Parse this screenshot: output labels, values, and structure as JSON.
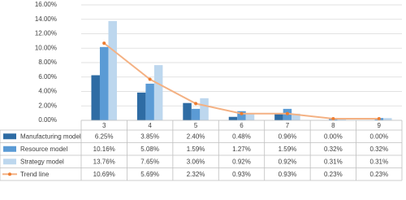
{
  "chart_data": {
    "type": "bar",
    "categories": [
      "3",
      "4",
      "5",
      "6",
      "7",
      "8",
      "9"
    ],
    "ylim": [
      0,
      16
    ],
    "yticks": [
      {
        "value": 0,
        "label": "0.00%"
      },
      {
        "value": 2,
        "label": "2.00%"
      },
      {
        "value": 4,
        "label": "4.00%"
      },
      {
        "value": 6,
        "label": "6.00%"
      },
      {
        "value": 8,
        "label": "8.00%"
      },
      {
        "value": 10,
        "label": "10.00%"
      },
      {
        "value": 12,
        "label": "12.00%"
      },
      {
        "value": 14,
        "label": "14.00%"
      },
      {
        "value": 16,
        "label": "16.00%"
      }
    ],
    "grid": true,
    "series": [
      {
        "name": "Manufacturing model",
        "type": "bar",
        "color": "#2e6ca4",
        "values": [
          6.25,
          3.85,
          2.4,
          0.48,
          0.96,
          0.0,
          0.0
        ],
        "value_labels": [
          "6.25%",
          "3.85%",
          "2.40%",
          "0.48%",
          "0.96%",
          "0.00%",
          "0.00%"
        ]
      },
      {
        "name": "Resource model",
        "type": "bar",
        "color": "#5b9bd5",
        "values": [
          10.16,
          5.08,
          1.59,
          1.27,
          1.59,
          0.32,
          0.32
        ],
        "value_labels": [
          "10.16%",
          "5.08%",
          "1.59%",
          "1.27%",
          "1.59%",
          "0.32%",
          "0.32%"
        ]
      },
      {
        "name": "Strategy model",
        "type": "bar",
        "color": "#bdd7ee",
        "values": [
          13.76,
          7.65,
          3.06,
          0.92,
          0.92,
          0.31,
          0.31
        ],
        "value_labels": [
          "13.76%",
          "7.65%",
          "3.06%",
          "0.92%",
          "0.92%",
          "0.31%",
          "0.31%"
        ]
      },
      {
        "name": "Trend line",
        "type": "line",
        "color": "#f4b183",
        "marker_color": "#ed7d31",
        "values": [
          10.69,
          5.69,
          2.32,
          0.93,
          0.93,
          0.23,
          0.23
        ],
        "value_labels": [
          "10.69%",
          "5.69%",
          "2.32%",
          "0.93%",
          "0.93%",
          "0.23%",
          "0.23%"
        ]
      }
    ]
  }
}
